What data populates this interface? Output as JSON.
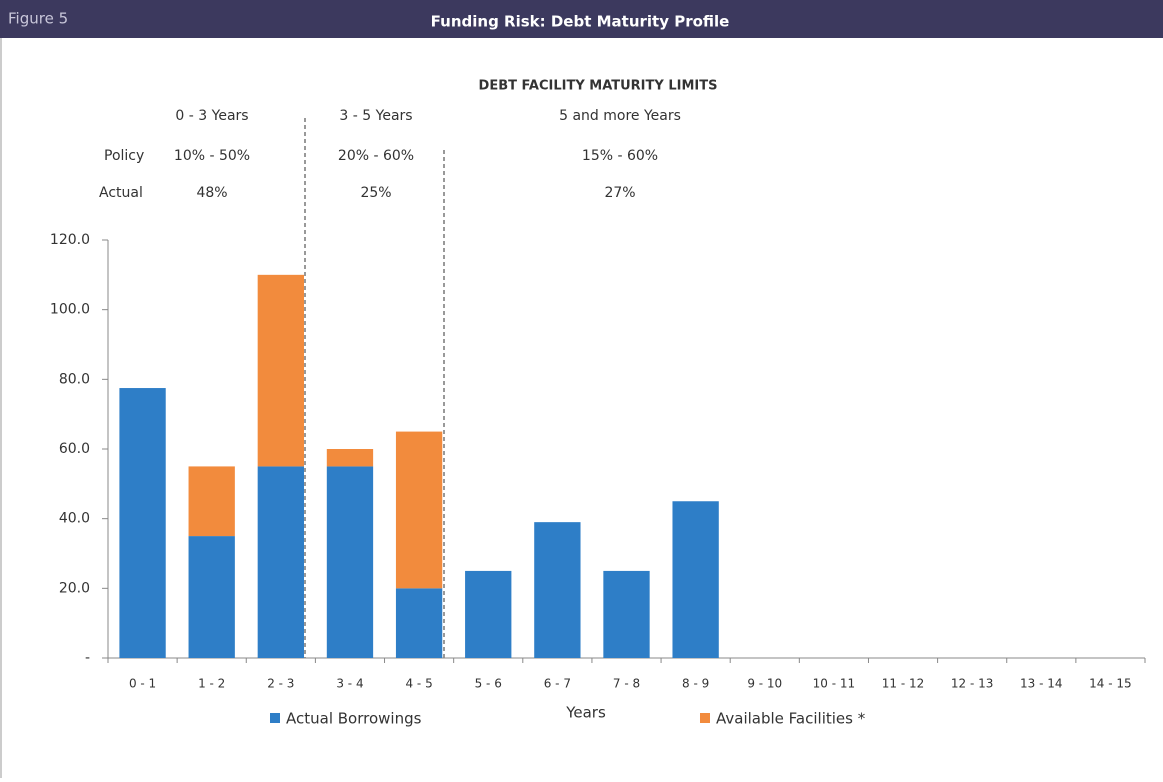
{
  "chart_data": {
    "type": "bar",
    "stacked": true,
    "figure_label": "Figure 5",
    "title": "Funding Risk: Debt Maturity Profile",
    "subtitle": "DEBT FACILITY MATURITY LIMITS",
    "maturity_limits": {
      "row_labels": [
        "Policy",
        "Actual"
      ],
      "periods": [
        {
          "period": "0 - 3 Years",
          "policy": "10% - 50%",
          "actual": "48%"
        },
        {
          "period": "3 - 5 Years",
          "policy": "20% - 60%",
          "actual": "25%"
        },
        {
          "period": "5 and more Years",
          "policy": "15% - 60%",
          "actual": "27%"
        }
      ]
    },
    "x_label": "Years",
    "categories": [
      "0 - 1",
      "1 - 2",
      "2 - 3",
      "3 - 4",
      "4 - 5",
      "5 - 6",
      "6 - 7",
      "7 - 8",
      "8 - 9",
      "9 - 10",
      "10 - 11",
      "11 - 12",
      "12 - 13",
      "13 - 14",
      "14 - 15"
    ],
    "series": [
      {
        "name": "Actual Borrowings",
        "color": "#2e7ec7",
        "values": [
          77.5,
          35,
          55,
          55,
          20,
          25,
          39,
          25,
          45,
          0,
          0,
          0,
          0,
          0,
          0
        ]
      },
      {
        "name": "Available Facilities *",
        "color": "#f28b3d",
        "values": [
          0,
          20,
          55,
          5,
          45,
          0,
          0,
          0,
          0,
          0,
          0,
          0,
          0,
          0,
          0
        ]
      }
    ],
    "ylim": [
      0,
      120
    ],
    "yticks": [
      {
        "value": 0,
        "label": "-"
      },
      {
        "value": 20,
        "label": "20.0"
      },
      {
        "value": 40,
        "label": "40.0"
      },
      {
        "value": 60,
        "label": "60.0"
      },
      {
        "value": 80,
        "label": "80.0"
      },
      {
        "value": 100,
        "label": "100.0"
      },
      {
        "value": 120,
        "label": "120.0"
      }
    ],
    "legend": "bottom"
  }
}
